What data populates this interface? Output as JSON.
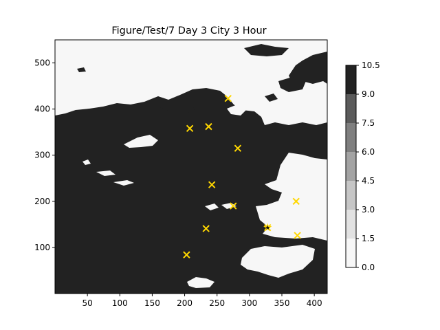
{
  "chart_data": {
    "type": "heatmap",
    "title": "Figure/Test/7 Day 3 City 3 Hour",
    "xlim": [
      0,
      420
    ],
    "ylim": [
      0,
      550
    ],
    "x_ticks": [
      50,
      100,
      150,
      200,
      250,
      300,
      350,
      400
    ],
    "y_ticks": [
      100,
      200,
      300,
      400,
      500
    ],
    "colorbar": {
      "levels": [
        0.0,
        1.5,
        3.0,
        4.5,
        6.0,
        7.5,
        9.0,
        10.5
      ],
      "tick_labels": [
        "0.0",
        "1.5",
        "3.0",
        "4.5",
        "6.0",
        "7.5",
        "9.0",
        "10.5"
      ],
      "colors": [
        "#f7f7f7",
        "#e2e2e2",
        "#c6c6c6",
        "#a3a3a3",
        "#7f7f7f",
        "#5b5b5b",
        "#222222"
      ]
    },
    "field_colors": {
      "high": "#222222",
      "low": "#f7f7f7"
    },
    "markers": {
      "symbol": "x",
      "color": "#ffd700",
      "points": [
        {
          "x": 267,
          "y": 423
        },
        {
          "x": 208,
          "y": 358
        },
        {
          "x": 237,
          "y": 362
        },
        {
          "x": 282,
          "y": 315
        },
        {
          "x": 242,
          "y": 236
        },
        {
          "x": 275,
          "y": 190
        },
        {
          "x": 372,
          "y": 200
        },
        {
          "x": 233,
          "y": 141
        },
        {
          "x": 328,
          "y": 143
        },
        {
          "x": 374,
          "y": 126
        },
        {
          "x": 203,
          "y": 84
        }
      ]
    },
    "start_marker": {
      "symbol": "star",
      "color": "#ffd700",
      "x": 328,
      "y": 143
    }
  }
}
